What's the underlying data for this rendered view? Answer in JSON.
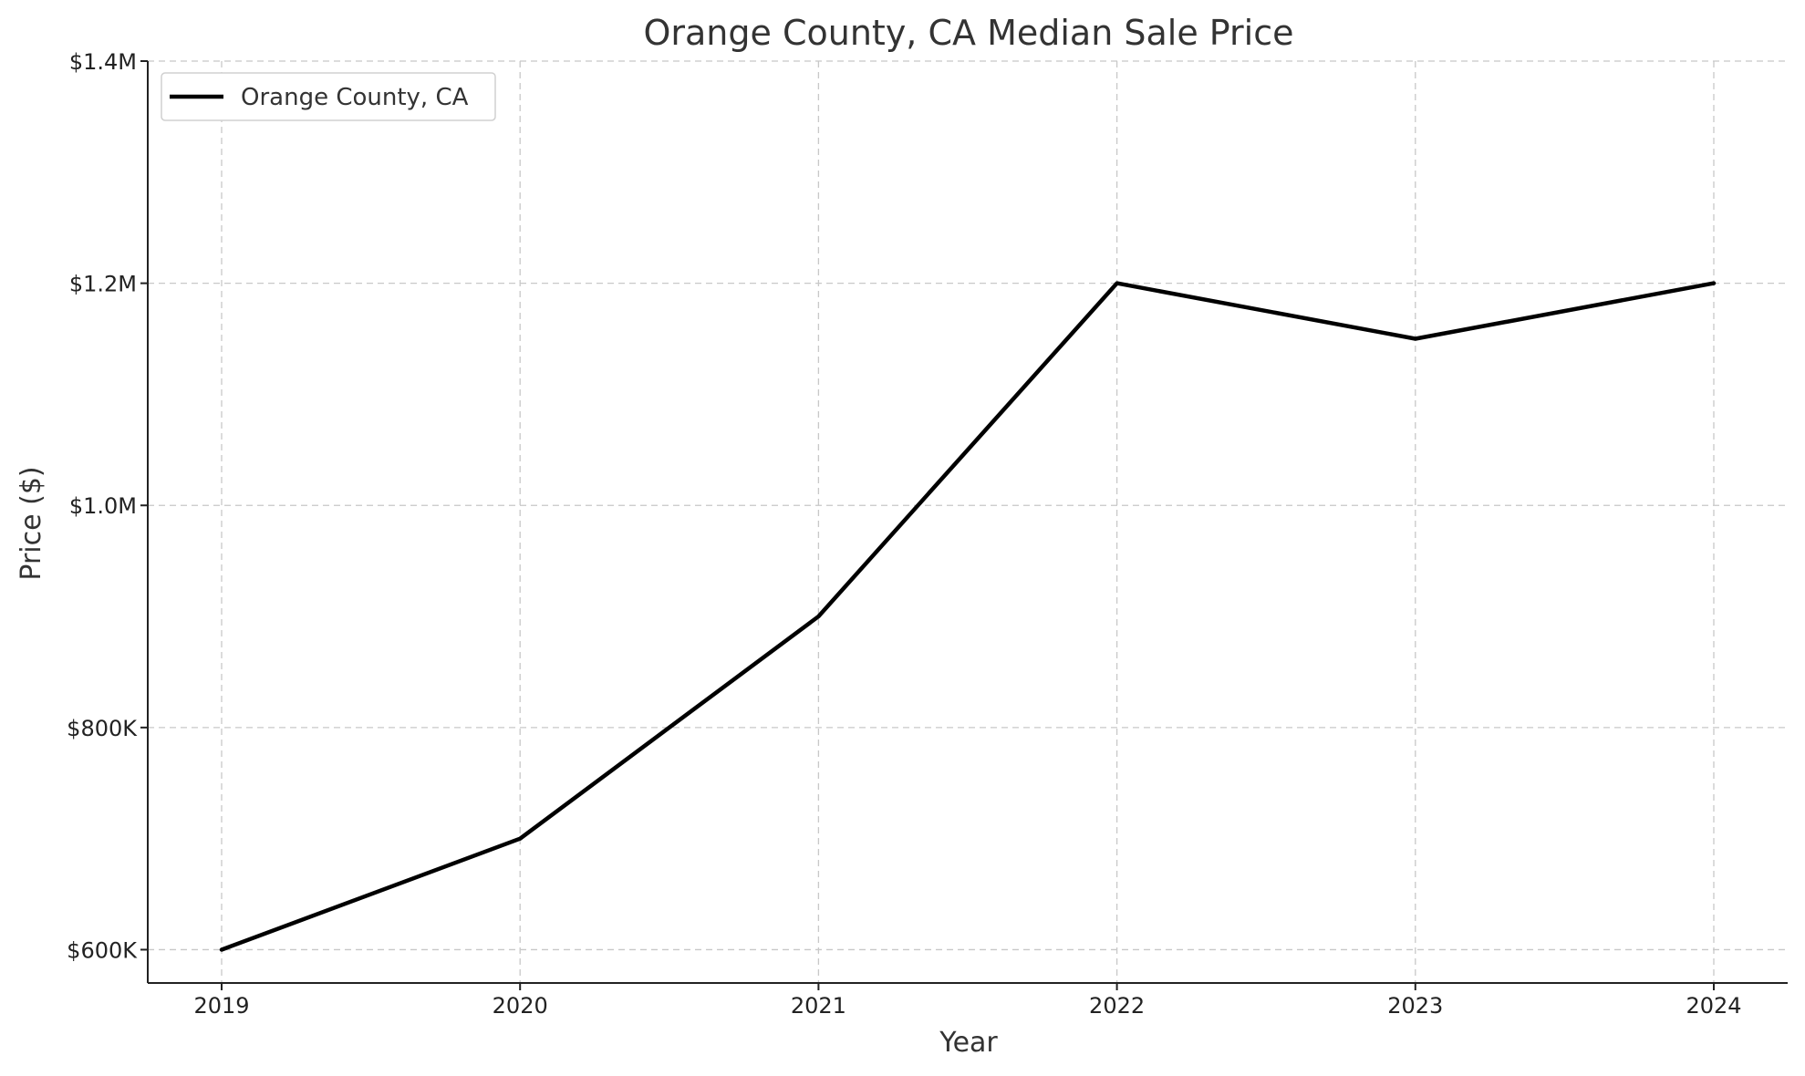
{
  "chart_data": {
    "type": "line",
    "title": "Orange County, CA Median Sale Price",
    "xlabel": "Year",
    "ylabel": "Price ($)",
    "x": [
      "2019",
      "2020",
      "2021",
      "2022",
      "2023",
      "2024"
    ],
    "series": [
      {
        "name": "Orange County, CA",
        "values": [
          600000,
          700000,
          900000,
          1200000,
          1150000,
          1200000
        ],
        "color": "#000000"
      }
    ],
    "ylim": [
      570000,
      1400000
    ],
    "yticks": [
      {
        "value": 600000,
        "label": "$600K"
      },
      {
        "value": 800000,
        "label": "$800K"
      },
      {
        "value": 1000000,
        "label": "$1.0M"
      },
      {
        "value": 1200000,
        "label": "$1.2M"
      },
      {
        "value": 1400000,
        "label": "$1.4M"
      }
    ],
    "grid": true,
    "legend_position": "top-left"
  }
}
